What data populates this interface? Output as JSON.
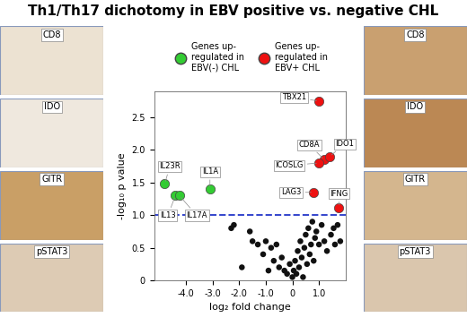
{
  "chart_data": {
    "type": "scatter",
    "title": "Th1/Th17 dichotomy in EBV positive vs. negative CHL",
    "xlabel": "log₂ fold change",
    "ylabel": "-log₁₀ p value",
    "xlim": [
      -5.2,
      2.0
    ],
    "ylim": [
      0,
      2.9
    ],
    "xticks": [
      {
        "value": -4,
        "label": "-4.0"
      },
      {
        "value": -3,
        "label": "-3.0"
      },
      {
        "value": -2,
        "label": "-2.0"
      },
      {
        "value": -1,
        "label": "-1.0"
      },
      0,
      {
        "value": 1,
        "label": "1.0"
      }
    ],
    "yticks": [
      0,
      0.5,
      {
        "value": 1,
        "label": "1.0"
      },
      1.5,
      {
        "value": 2,
        "label": "2.0"
      },
      2.5
    ],
    "grid": false,
    "legend": "upper center",
    "threshold_line": {
      "y": 1.0,
      "color": "#3344cc",
      "line_style": "dashed"
    },
    "series": [
      {
        "name": "Genes up-regulated in EBV(-) CHL",
        "color": "#33cc33",
        "marker": "circle",
        "x": [
          -4.8,
          -4.4,
          -4.25,
          -3.1
        ],
        "values": [
          1.48,
          1.3,
          1.3,
          1.4
        ],
        "point_labels": [
          "IL23R",
          "IL13",
          "IL17A",
          "IL1A"
        ]
      },
      {
        "name": "Genes up-regulated in EBV+ CHL",
        "color": "#ee1111",
        "marker": "circle",
        "x": [
          1.0,
          1.2,
          1.4,
          1.0,
          0.8,
          1.75
        ],
        "values": [
          2.75,
          1.85,
          1.9,
          1.8,
          1.35,
          1.12
        ],
        "point_labels": [
          "TBX21",
          "CD8A",
          "IDO1",
          "ICOSLG",
          "LAG3",
          "IFNG"
        ]
      },
      {
        "color": "#111111",
        "marker": "circle",
        "x": [
          -2.3,
          -2.2,
          -1.9,
          -1.6,
          -1.5,
          -1.3,
          -1.1,
          -1.0,
          -0.9,
          -0.8,
          -0.7,
          -0.6,
          -0.5,
          -0.4,
          -0.3,
          -0.2,
          -0.1,
          0.0,
          0.05,
          0.1,
          0.15,
          0.2,
          0.25,
          0.3,
          0.35,
          0.4,
          0.45,
          0.5,
          0.55,
          0.6,
          0.65,
          0.7,
          0.75,
          0.8,
          0.85,
          0.9,
          1.0,
          1.1,
          1.2,
          1.3,
          1.45,
          1.55,
          1.6,
          1.7,
          1.8
        ],
        "values": [
          0.8,
          0.85,
          0.2,
          0.75,
          0.6,
          0.55,
          0.4,
          0.6,
          0.15,
          0.5,
          0.3,
          0.55,
          0.2,
          0.35,
          0.15,
          0.1,
          0.25,
          0.05,
          0.15,
          0.3,
          0.1,
          0.45,
          0.2,
          0.6,
          0.35,
          0.05,
          0.5,
          0.7,
          0.25,
          0.8,
          0.4,
          0.55,
          0.9,
          0.3,
          0.65,
          0.75,
          0.55,
          0.85,
          0.6,
          0.45,
          0.7,
          0.8,
          0.55,
          0.85,
          0.6
        ]
      }
    ]
  },
  "panels": {
    "left": [
      "CD8",
      "IDO",
      "GITR",
      "pSTAT3"
    ],
    "right": [
      "CD8",
      "IDO",
      "GITR",
      "pSTAT3"
    ]
  }
}
